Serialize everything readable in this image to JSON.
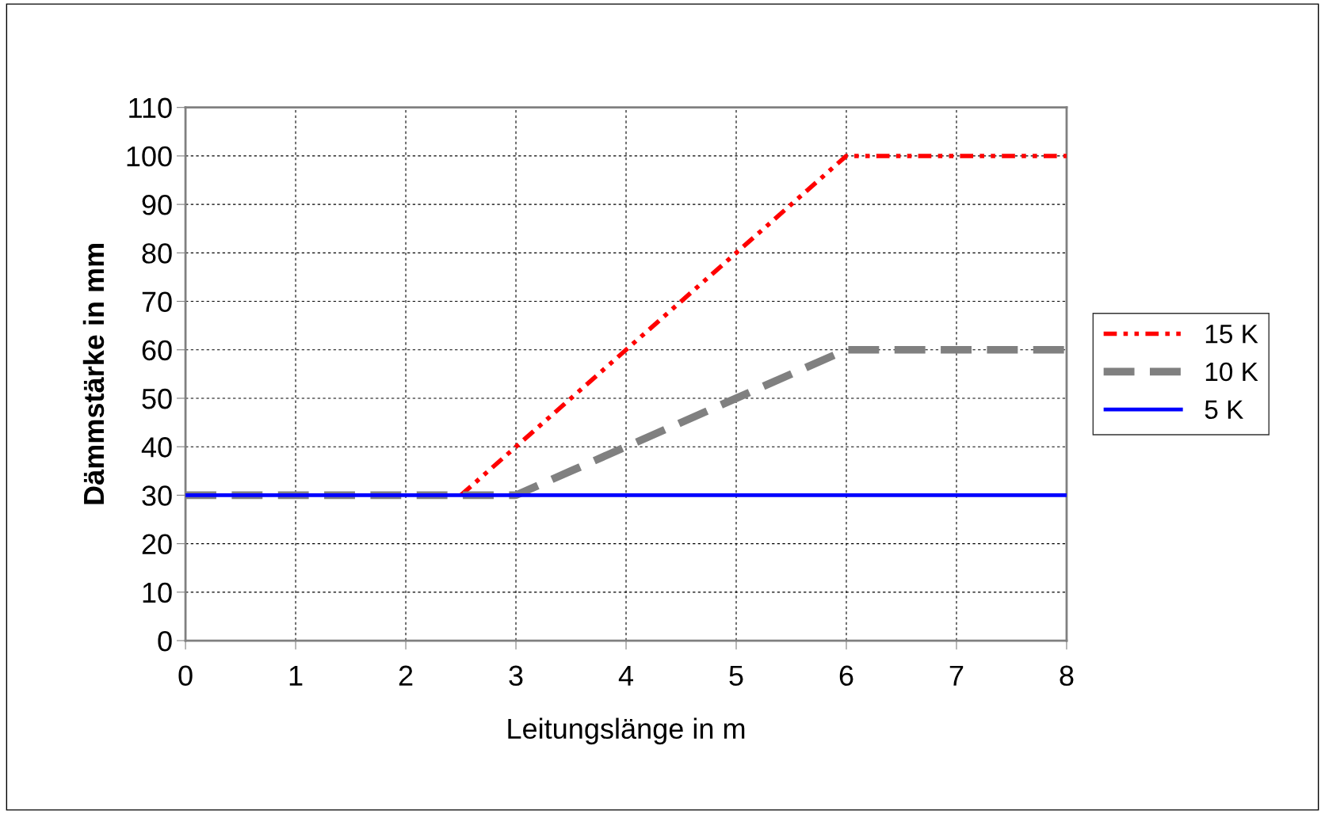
{
  "chart_data": {
    "type": "line",
    "xlabel": "Leitungslänge in m",
    "ylabel": "Dämmstärke in mm",
    "xlim": [
      0,
      8
    ],
    "xticks": [
      0,
      1,
      2,
      3,
      4,
      5,
      6,
      7,
      8
    ],
    "ylim": [
      0,
      110
    ],
    "yticks": [
      0,
      10,
      20,
      30,
      40,
      50,
      60,
      70,
      80,
      90,
      100,
      110
    ],
    "grid": true,
    "legend": "right",
    "marker": "none",
    "series": [
      {
        "name": "15 K",
        "color": "#ff0000",
        "line_style": "dashed",
        "x": [
          2.5,
          3,
          3.5,
          4,
          4.5,
          5,
          5.5,
          6,
          8
        ],
        "values": [
          30,
          40,
          50,
          60,
          70,
          80,
          90,
          100,
          100
        ]
      },
      {
        "name": "10 K",
        "color": "#808080",
        "line_style": "dashed",
        "x": [
          0,
          3,
          3.5,
          4,
          4.5,
          5,
          6,
          8
        ],
        "values": [
          30,
          30,
          35,
          40,
          45,
          50,
          60,
          60
        ]
      },
      {
        "name": "5 K",
        "color": "#0000ff",
        "line_style": "solid",
        "x": [
          0,
          8
        ],
        "values": [
          30,
          30
        ]
      }
    ]
  }
}
